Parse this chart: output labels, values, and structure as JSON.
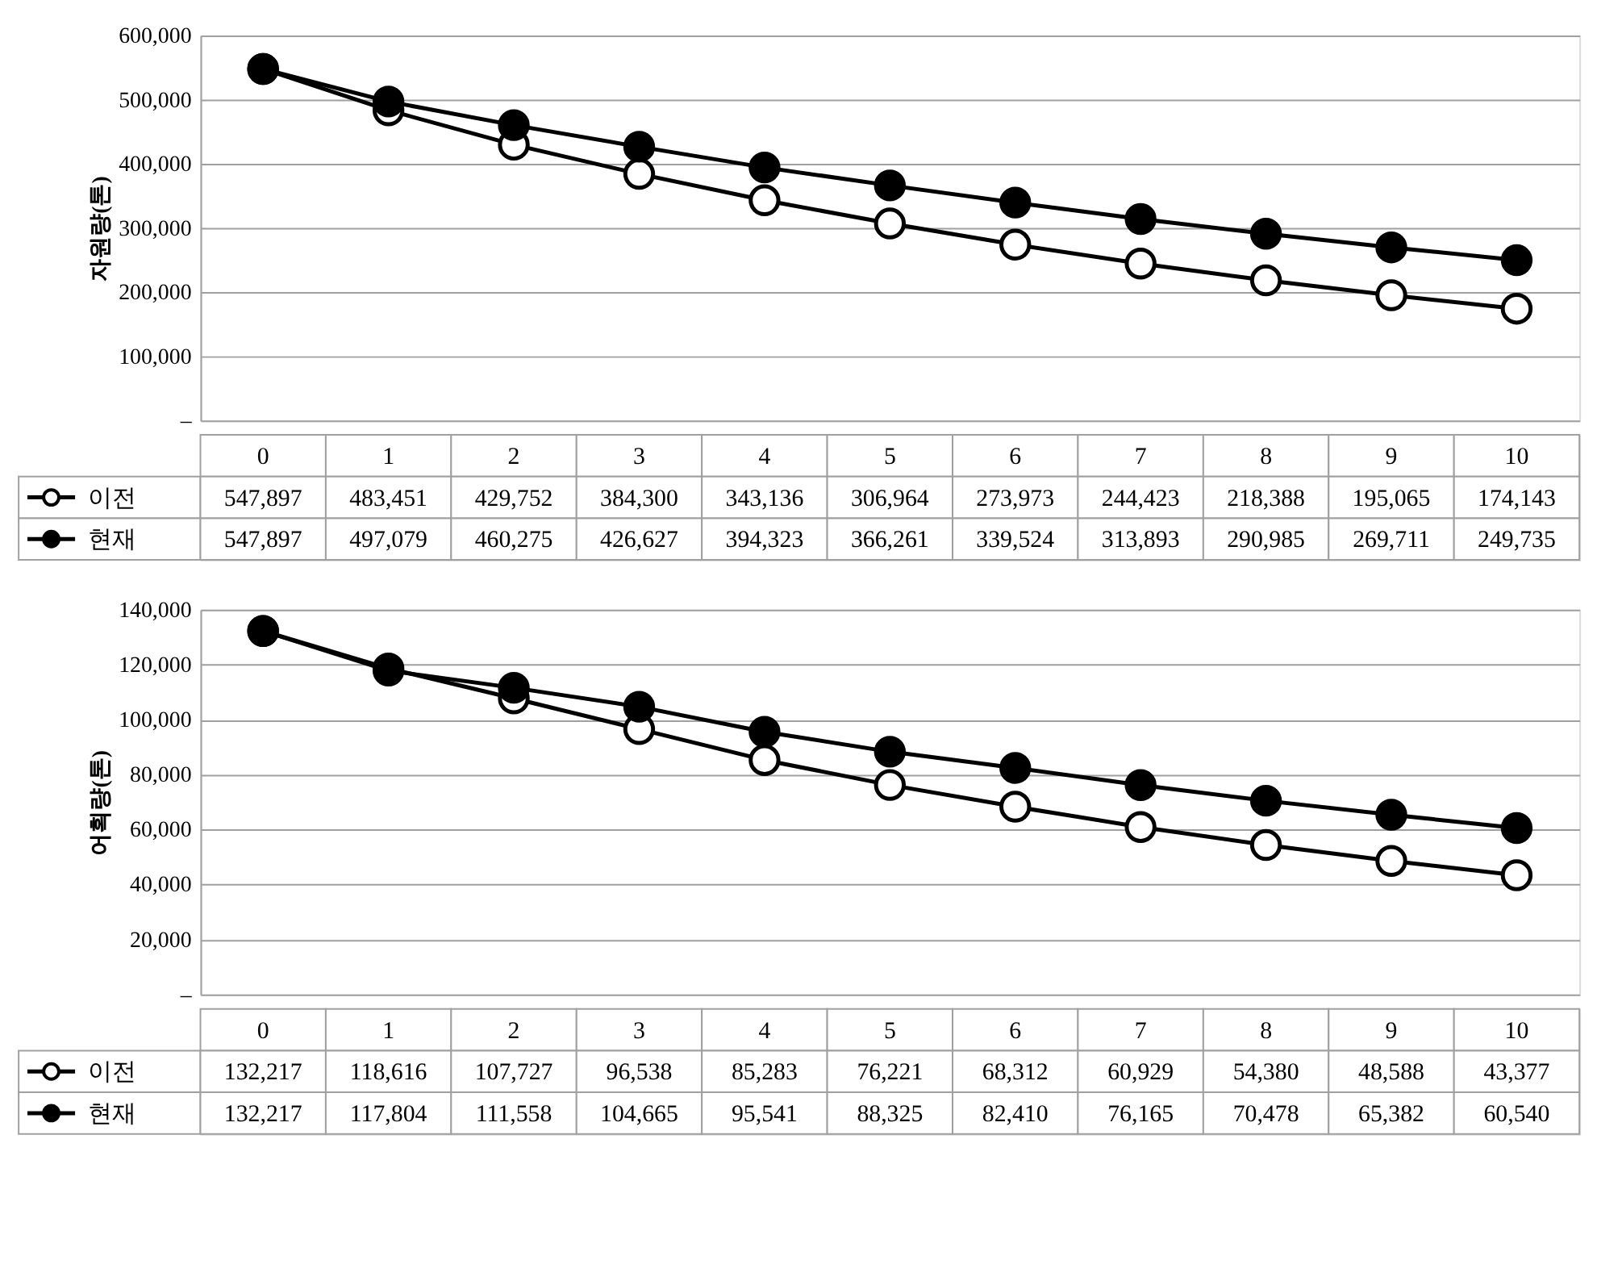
{
  "chart_data": [
    {
      "type": "line",
      "ylabel": "자원량(톤)",
      "categories": [
        "0",
        "1",
        "2",
        "3",
        "4",
        "5",
        "6",
        "7",
        "8",
        "9",
        "10"
      ],
      "series": [
        {
          "name": "이전",
          "color": "#000000",
          "values": [
            547897,
            483451,
            429752,
            384300,
            343136,
            306964,
            273973,
            244423,
            218388,
            195065,
            174143
          ],
          "value_labels": [
            "547,897",
            "483,451",
            "429,752",
            "384,300",
            "343,136",
            "306,964",
            "273,973",
            "244,423",
            "218,388",
            "195,065",
            "174,143"
          ]
        },
        {
          "name": "현재",
          "color": "#000000",
          "values": [
            547897,
            497079,
            460275,
            426627,
            394323,
            366261,
            339524,
            313893,
            290985,
            269711,
            249735
          ],
          "value_labels": [
            "547,897",
            "497,079",
            "460,275",
            "426,627",
            "394,323",
            "366,261",
            "339,524",
            "313,893",
            "290,985",
            "269,711",
            "249,735"
          ]
        }
      ],
      "ylim": [
        0,
        600000
      ],
      "yticks": [
        {
          "value": 0,
          "label": "–"
        },
        {
          "value": 100000,
          "label": "100,000"
        },
        {
          "value": 200000,
          "label": "200,000"
        },
        {
          "value": 300000,
          "label": "300,000"
        },
        {
          "value": 400000,
          "label": "400,000"
        },
        {
          "value": 500000,
          "label": "500,000"
        },
        {
          "value": 600000,
          "label": "600,000"
        }
      ],
      "grid": "y",
      "marker": "circle",
      "legend": "bottom"
    },
    {
      "type": "line",
      "ylabel": "어획량(톤)",
      "categories": [
        "0",
        "1",
        "2",
        "3",
        "4",
        "5",
        "6",
        "7",
        "8",
        "9",
        "10"
      ],
      "series": [
        {
          "name": "이전",
          "color": "#000000",
          "values": [
            132217,
            118616,
            107727,
            96538,
            85283,
            76221,
            68312,
            60929,
            54380,
            48588,
            43377
          ],
          "value_labels": [
            "132,217",
            "118,616",
            "107,727",
            "96,538",
            "85,283",
            "76,221",
            "68,312",
            "60,929",
            "54,380",
            "48,588",
            "43,377"
          ]
        },
        {
          "name": "현재",
          "color": "#000000",
          "values": [
            132217,
            117804,
            111558,
            104665,
            95541,
            88325,
            82410,
            76165,
            70478,
            65382,
            60540
          ],
          "value_labels": [
            "132,217",
            "117,804",
            "111,558",
            "104,665",
            "95,541",
            "88,325",
            "82,410",
            "76,165",
            "70,478",
            "65,382",
            "60,540"
          ]
        }
      ],
      "ylim": [
        0,
        140000
      ],
      "yticks": [
        {
          "value": 0,
          "label": "–"
        },
        {
          "value": 20000,
          "label": "20,000"
        },
        {
          "value": 40000,
          "label": "40,000"
        },
        {
          "value": 60000,
          "label": "60,000"
        },
        {
          "value": 80000,
          "label": "80,000"
        },
        {
          "value": 100000,
          "label": "100,000"
        },
        {
          "value": 120000,
          "label": "120,000"
        },
        {
          "value": 140000,
          "label": "140,000"
        }
      ],
      "grid": "y",
      "marker": "circle",
      "legend": "bottom"
    }
  ]
}
